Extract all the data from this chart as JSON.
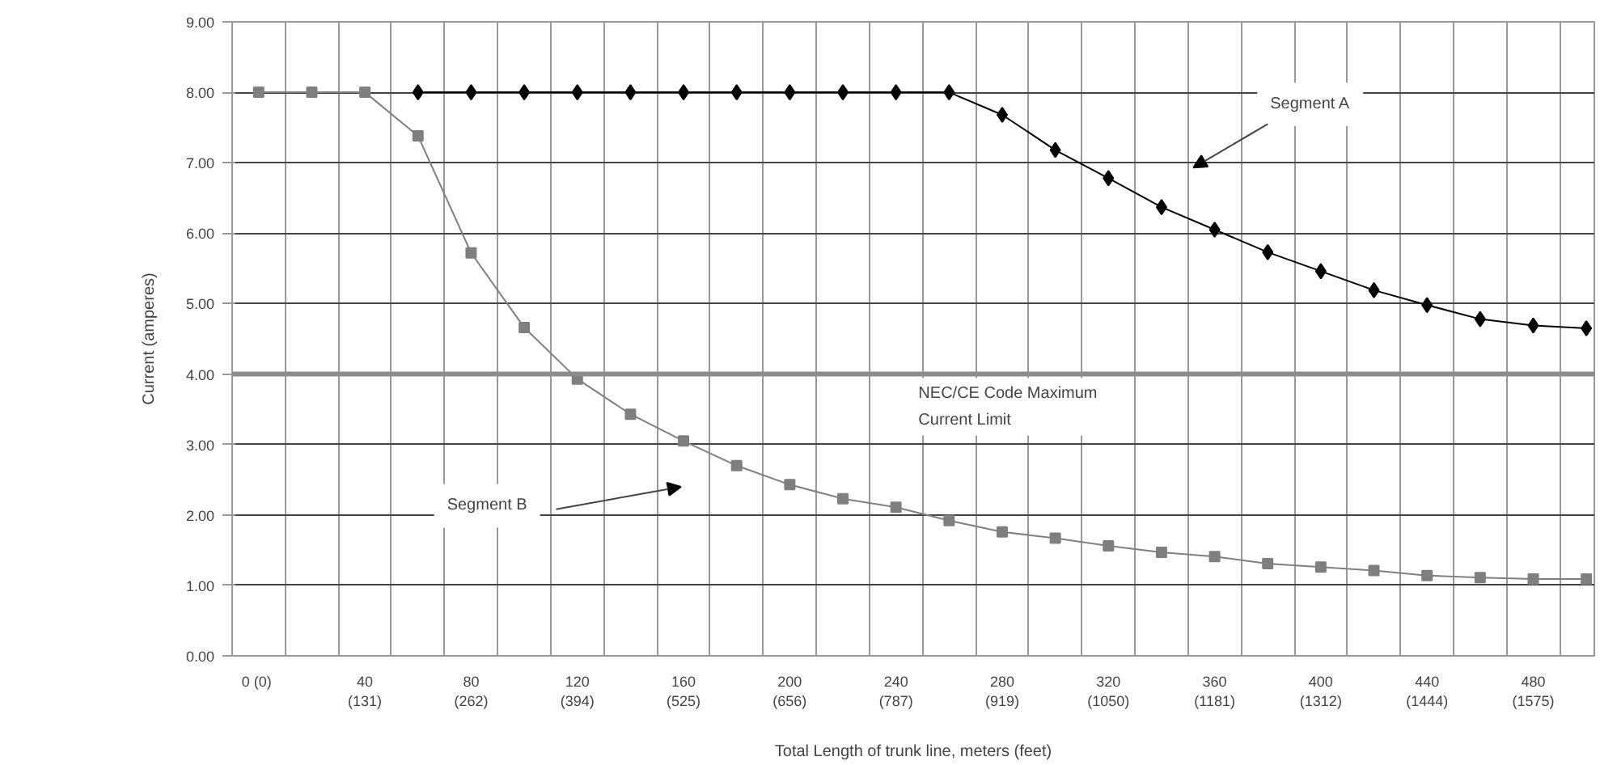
{
  "chart_data": {
    "type": "line",
    "xlabel": "Total Length of trunk line, meters (feet)",
    "ylabel": "Current (amperes)",
    "categories": [
      "0  (0)",
      null,
      "40\n(131)",
      null,
      "80\n(262)",
      null,
      "120\n(394)",
      null,
      "160\n(525)",
      null,
      "200\n(656)",
      null,
      "240\n(787)",
      null,
      "280\n(919)",
      null,
      "320\n(1050)",
      null,
      "360\n(1181)",
      null,
      "400\n(1312)",
      null,
      "440\n(1444)",
      null,
      "480\n(1575)",
      null
    ],
    "series": [
      {
        "color": "#000000",
        "marker": "diamond",
        "values": [
          null,
          null,
          null,
          8,
          8,
          8,
          8,
          8,
          8,
          8,
          8,
          8,
          8,
          8,
          7.68,
          7.18,
          6.78,
          6.37,
          6.05,
          5.73,
          5.46,
          5.19,
          4.98,
          4.78,
          4.69,
          4.65
        ]
      },
      {
        "color": "#7f7f7f",
        "marker": "square",
        "values": [
          8,
          8,
          8,
          7.38,
          5.72,
          4.66,
          3.93,
          3.43,
          3.05,
          2.7,
          2.43,
          2.23,
          2.11,
          1.92,
          1.76,
          1.67,
          1.56,
          1.47,
          1.41,
          1.31,
          1.26,
          1.21,
          1.14,
          1.11,
          1.09,
          1.09
        ]
      }
    ],
    "annotations": [
      "Segment A",
      "Segment B"
    ],
    "ref_lines": [
      {
        "axis": "y",
        "value": 4,
        "label": "NEC/CE Code Maximum\nCurrent Limit",
        "color": "#8c8c8c"
      }
    ],
    "ylim": [
      0,
      9
    ],
    "yticks": [
      {
        "value": 0,
        "label": "0.00"
      },
      {
        "value": 1,
        "label": "1.00"
      },
      {
        "value": 2,
        "label": "2.00"
      },
      {
        "value": 3,
        "label": "3.00"
      },
      {
        "value": 4,
        "label": "4.00"
      },
      {
        "value": 5,
        "label": "5.00"
      },
      {
        "value": 6,
        "label": "6.00"
      },
      {
        "value": 7,
        "label": "7.00"
      },
      {
        "value": 8,
        "label": "8.00"
      },
      {
        "value": 9,
        "label": "9.00"
      }
    ],
    "grid": true,
    "line_style": "solid"
  }
}
